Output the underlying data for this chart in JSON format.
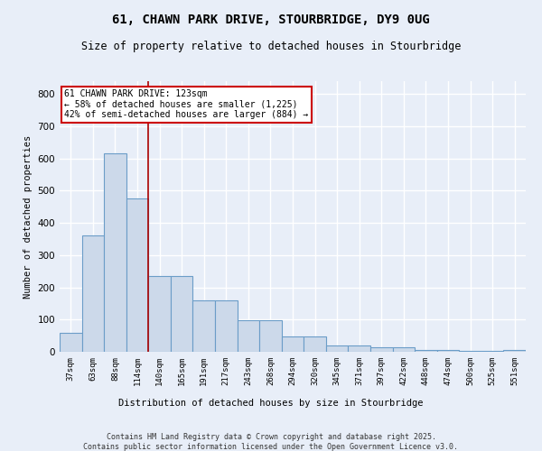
{
  "title_line1": "61, CHAWN PARK DRIVE, STOURBRIDGE, DY9 0UG",
  "title_line2": "Size of property relative to detached houses in Stourbridge",
  "xlabel": "Distribution of detached houses by size in Stourbridge",
  "ylabel": "Number of detached properties",
  "bar_labels": [
    "37sqm",
    "63sqm",
    "88sqm",
    "114sqm",
    "140sqm",
    "165sqm",
    "191sqm",
    "217sqm",
    "243sqm",
    "268sqm",
    "294sqm",
    "320sqm",
    "345sqm",
    "371sqm",
    "397sqm",
    "422sqm",
    "448sqm",
    "474sqm",
    "500sqm",
    "525sqm",
    "551sqm"
  ],
  "bar_values": [
    60,
    360,
    615,
    475,
    235,
    235,
    160,
    160,
    97,
    97,
    47,
    47,
    20,
    20,
    13,
    13,
    5,
    5,
    2,
    2,
    5
  ],
  "bar_color": "#ccd9ea",
  "bar_edge_color": "#6b9dc8",
  "background_color": "#e8eef8",
  "grid_color": "#ffffff",
  "red_line_x": 3.5,
  "annotation_text": "61 CHAWN PARK DRIVE: 123sqm\n← 58% of detached houses are smaller (1,225)\n42% of semi-detached houses are larger (884) →",
  "annotation_box_color": "#ffffff",
  "annotation_box_edge_color": "#cc0000",
  "ylim": [
    0,
    840
  ],
  "yticks": [
    0,
    100,
    200,
    300,
    400,
    500,
    600,
    700,
    800
  ],
  "footnote_line1": "Contains HM Land Registry data © Crown copyright and database right 2025.",
  "footnote_line2": "Contains public sector information licensed under the Open Government Licence v3.0."
}
